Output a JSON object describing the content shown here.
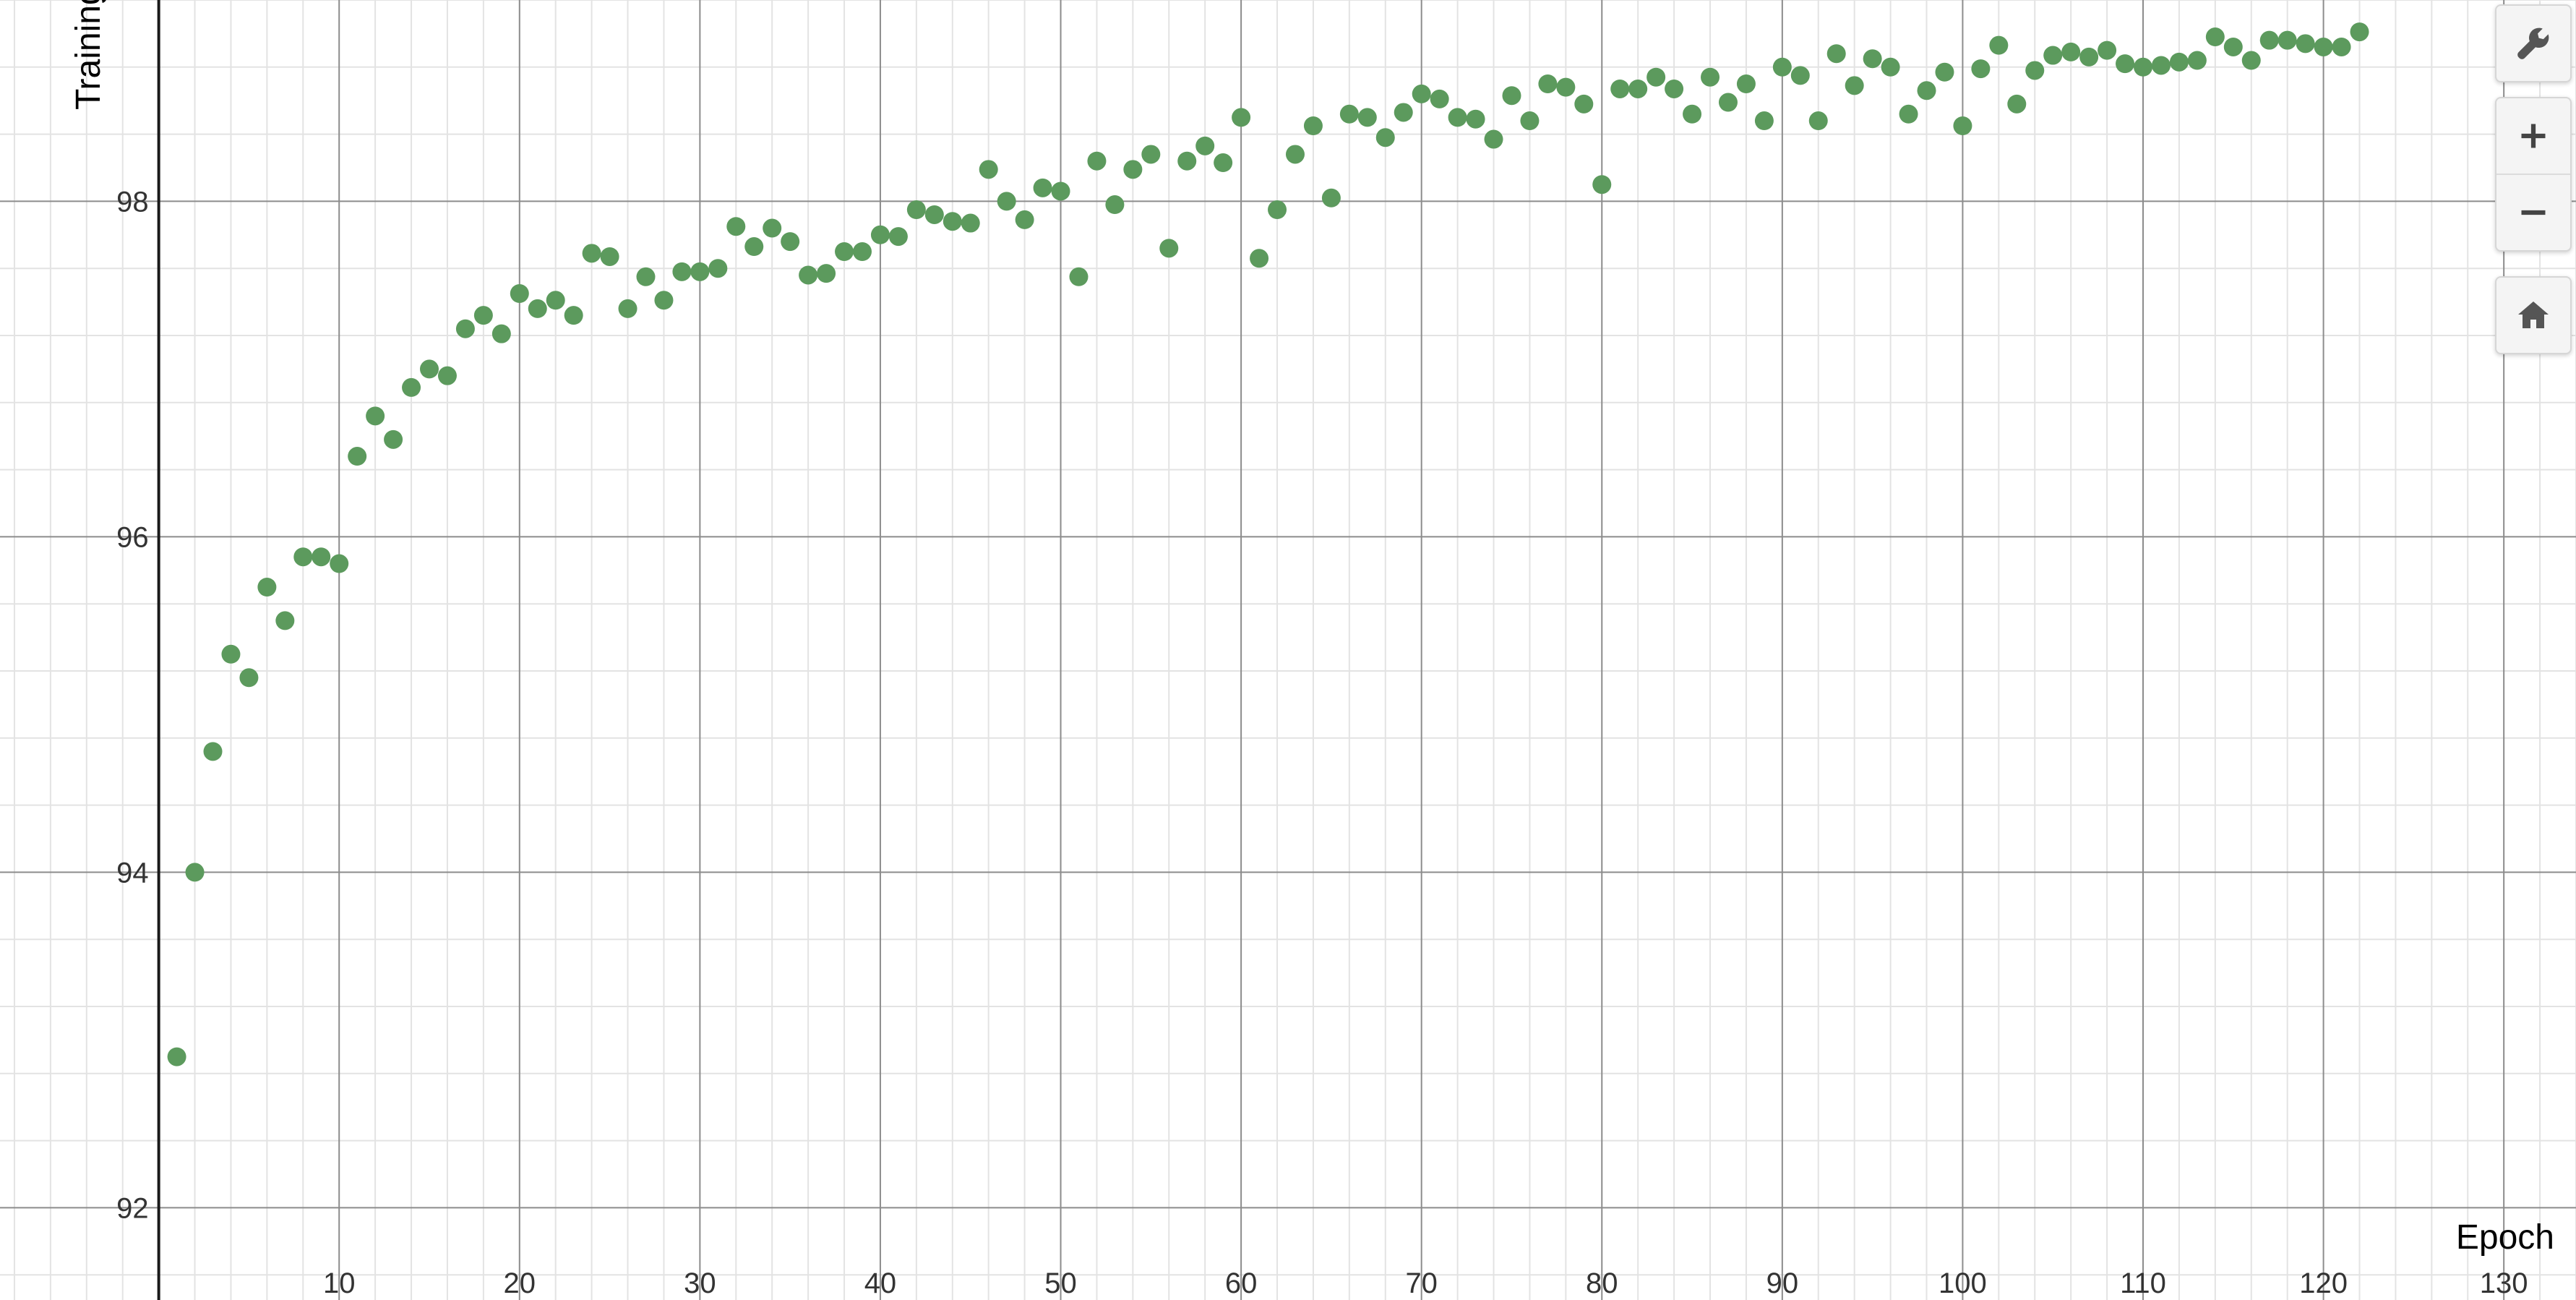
{
  "toolbar": {
    "settings_icon": "wrench-icon",
    "zoom_in_icon": "plus-icon",
    "zoom_out_icon": "minus-icon",
    "home_icon": "home-icon"
  },
  "chart_data": {
    "type": "scatter",
    "title": "",
    "xlabel": "Epoch",
    "ylabel": "Training %",
    "xlim": [
      -8.8,
      134
    ],
    "ylim": [
      91.45,
      99.2
    ],
    "x_ticks": [
      10,
      20,
      30,
      40,
      50,
      60,
      70,
      80,
      90,
      100,
      110,
      120,
      130
    ],
    "y_ticks": [
      92,
      94,
      96,
      98
    ],
    "grid": true,
    "legend": "none",
    "point_color": "#5c9a5d",
    "series": [
      {
        "points": [
          [
            1,
            92.9
          ],
          [
            2,
            94.0
          ],
          [
            3,
            94.72
          ],
          [
            4,
            95.3
          ],
          [
            5,
            95.16
          ],
          [
            6,
            95.7
          ],
          [
            7,
            95.5
          ],
          [
            8,
            95.88
          ],
          [
            9,
            95.88
          ],
          [
            10,
            95.84
          ],
          [
            11,
            96.48
          ],
          [
            12,
            96.72
          ],
          [
            13,
            96.58
          ],
          [
            14,
            96.89
          ],
          [
            15,
            97.0
          ],
          [
            16,
            96.96
          ],
          [
            17,
            97.24
          ],
          [
            18,
            97.32
          ],
          [
            19,
            97.21
          ],
          [
            20,
            97.45
          ],
          [
            21,
            97.36
          ],
          [
            22,
            97.41
          ],
          [
            23,
            97.32
          ],
          [
            24,
            97.69
          ],
          [
            25,
            97.67
          ],
          [
            26,
            97.36
          ],
          [
            27,
            97.55
          ],
          [
            28,
            97.41
          ],
          [
            29,
            97.58
          ],
          [
            30,
            97.58
          ],
          [
            31,
            97.6
          ],
          [
            32,
            97.85
          ],
          [
            33,
            97.73
          ],
          [
            34,
            97.84
          ],
          [
            35,
            97.76
          ],
          [
            36,
            97.56
          ],
          [
            37,
            97.57
          ],
          [
            38,
            97.7
          ],
          [
            39,
            97.7
          ],
          [
            40,
            97.8
          ],
          [
            41,
            97.79
          ],
          [
            42,
            97.95
          ],
          [
            43,
            97.92
          ],
          [
            44,
            97.88
          ],
          [
            45,
            97.87
          ],
          [
            46,
            98.19
          ],
          [
            47,
            98.0
          ],
          [
            48,
            97.89
          ],
          [
            49,
            98.08
          ],
          [
            50,
            98.06
          ],
          [
            51,
            97.55
          ],
          [
            52,
            98.24
          ],
          [
            53,
            97.98
          ],
          [
            54,
            98.19
          ],
          [
            55,
            98.28
          ],
          [
            56,
            97.72
          ],
          [
            57,
            98.24
          ],
          [
            58,
            98.33
          ],
          [
            59,
            98.23
          ],
          [
            60,
            98.5
          ],
          [
            61,
            97.66
          ],
          [
            62,
            97.95
          ],
          [
            63,
            98.28
          ],
          [
            64,
            98.45
          ],
          [
            65,
            98.02
          ],
          [
            66,
            98.52
          ],
          [
            67,
            98.5
          ],
          [
            68,
            98.38
          ],
          [
            69,
            98.53
          ],
          [
            70,
            98.64
          ],
          [
            71,
            98.61
          ],
          [
            72,
            98.5
          ],
          [
            73,
            98.49
          ],
          [
            74,
            98.37
          ],
          [
            75,
            98.63
          ],
          [
            76,
            98.48
          ],
          [
            77,
            98.7
          ],
          [
            78,
            98.68
          ],
          [
            79,
            98.58
          ],
          [
            80,
            98.1
          ],
          [
            81,
            98.67
          ],
          [
            82,
            98.67
          ],
          [
            83,
            98.74
          ],
          [
            84,
            98.67
          ],
          [
            85,
            98.52
          ],
          [
            86,
            98.74
          ],
          [
            87,
            98.59
          ],
          [
            88,
            98.7
          ],
          [
            89,
            98.48
          ],
          [
            90,
            98.8
          ],
          [
            91,
            98.75
          ],
          [
            92,
            98.48
          ],
          [
            93,
            98.88
          ],
          [
            94,
            98.69
          ],
          [
            95,
            98.85
          ],
          [
            96,
            98.8
          ],
          [
            97,
            98.52
          ],
          [
            98,
            98.66
          ],
          [
            99,
            98.77
          ],
          [
            100,
            98.45
          ],
          [
            101,
            98.79
          ],
          [
            102,
            98.93
          ],
          [
            103,
            98.58
          ],
          [
            104,
            98.78
          ],
          [
            105,
            98.87
          ],
          [
            106,
            98.89
          ],
          [
            107,
            98.86
          ],
          [
            108,
            98.9
          ],
          [
            109,
            98.82
          ],
          [
            110,
            98.8
          ],
          [
            111,
            98.81
          ],
          [
            112,
            98.83
          ],
          [
            113,
            98.84
          ],
          [
            114,
            98.98
          ],
          [
            115,
            98.92
          ],
          [
            116,
            98.84
          ],
          [
            117,
            98.96
          ],
          [
            118,
            98.96
          ],
          [
            119,
            98.94
          ],
          [
            120,
            98.92
          ],
          [
            121,
            98.92
          ],
          [
            122,
            99.01
          ]
        ]
      }
    ]
  }
}
